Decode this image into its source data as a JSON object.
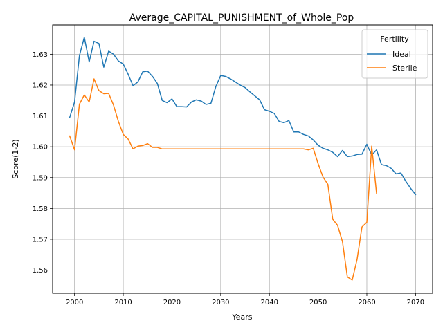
{
  "chart_data": {
    "type": "line",
    "title": "Average_CAPITAL_PUNISHMENT_of_Whole_Pop",
    "xlabel": "Years",
    "ylabel": "Score(1-2)",
    "xlim": [
      1995.5,
      2073.5
    ],
    "ylim": [
      1.5525,
      1.6395
    ],
    "xticks": [
      2000,
      2010,
      2020,
      2030,
      2040,
      2050,
      2060,
      2070
    ],
    "yticks": [
      1.56,
      1.57,
      1.58,
      1.59,
      1.6,
      1.61,
      1.62,
      1.63
    ],
    "grid": true,
    "legend": {
      "title": "Fertility",
      "placement": "top-right"
    },
    "series": [
      {
        "name": "Ideal",
        "color": "#1f77b4",
        "x": [
          1999,
          2000,
          2001,
          2002,
          2003,
          2004,
          2005,
          2006,
          2007,
          2008,
          2009,
          2010,
          2011,
          2012,
          2013,
          2014,
          2015,
          2016,
          2017,
          2018,
          2019,
          2020,
          2021,
          2022,
          2023,
          2024,
          2025,
          2026,
          2027,
          2028,
          2029,
          2030,
          2031,
          2032,
          2033,
          2034,
          2035,
          2036,
          2037,
          2038,
          2039,
          2040,
          2041,
          2042,
          2043,
          2044,
          2045,
          2046,
          2047,
          2048,
          2049,
          2050,
          2051,
          2052,
          2053,
          2054,
          2055,
          2056,
          2057,
          2058,
          2059,
          2060,
          2061,
          2062,
          2063,
          2064,
          2065,
          2066,
          2067,
          2068,
          2069,
          2070
        ],
        "values": [
          1.6095,
          1.6145,
          1.6295,
          1.6355,
          1.6275,
          1.6342,
          1.6335,
          1.6258,
          1.631,
          1.63,
          1.6278,
          1.6268,
          1.6235,
          1.6198,
          1.621,
          1.6243,
          1.6245,
          1.6228,
          1.6205,
          1.615,
          1.6143,
          1.6155,
          1.613,
          1.613,
          1.6129,
          1.6145,
          1.6152,
          1.6148,
          1.6137,
          1.6141,
          1.6195,
          1.6231,
          1.6228,
          1.622,
          1.621,
          1.62,
          1.6192,
          1.6178,
          1.6165,
          1.6152,
          1.612,
          1.6115,
          1.6108,
          1.6082,
          1.6078,
          1.6085,
          1.6048,
          1.6048,
          1.604,
          1.6035,
          1.6022,
          1.6005,
          1.5995,
          1.599,
          1.5982,
          1.5968,
          1.5988,
          1.5968,
          1.597,
          1.5975,
          1.5976,
          1.6008,
          1.5973,
          1.599,
          1.5942,
          1.5939,
          1.593,
          1.5912,
          1.5915,
          1.5888,
          1.5865,
          1.5845
        ]
      },
      {
        "name": "Sterile",
        "color": "#ff7f0e",
        "x": [
          1999,
          2000,
          2001,
          2002,
          2003,
          2004,
          2005,
          2006,
          2007,
          2008,
          2009,
          2010,
          2011,
          2012,
          2013,
          2014,
          2015,
          2016,
          2017,
          2018,
          2019,
          2020,
          2021,
          2022,
          2023,
          2024,
          2025,
          2026,
          2027,
          2028,
          2029,
          2030,
          2031,
          2032,
          2033,
          2034,
          2035,
          2036,
          2037,
          2038,
          2039,
          2040,
          2041,
          2042,
          2043,
          2044,
          2045,
          2046,
          2047,
          2048,
          2049,
          2050,
          2051,
          2052,
          2053,
          2054,
          2055,
          2056,
          2057,
          2058,
          2059,
          2060,
          2061,
          2062
        ],
        "values": [
          1.6035,
          1.599,
          1.6138,
          1.6168,
          1.6145,
          1.622,
          1.6182,
          1.6172,
          1.6173,
          1.6135,
          1.6082,
          1.604,
          1.6025,
          1.5993,
          1.6002,
          1.6004,
          1.601,
          1.5998,
          1.5998,
          1.5993,
          1.5993,
          1.5993,
          1.5993,
          1.5993,
          1.5993,
          1.5993,
          1.5993,
          1.5993,
          1.5993,
          1.5993,
          1.5993,
          1.5993,
          1.5993,
          1.5993,
          1.5993,
          1.5993,
          1.5993,
          1.5993,
          1.5993,
          1.5993,
          1.5993,
          1.5993,
          1.5993,
          1.5993,
          1.5993,
          1.5993,
          1.5993,
          1.5993,
          1.5993,
          1.599,
          1.5995,
          1.5945,
          1.5902,
          1.5878,
          1.5765,
          1.5745,
          1.5692,
          1.5578,
          1.5568,
          1.5635,
          1.574,
          1.5755,
          1.6002,
          1.5848
        ]
      }
    ]
  }
}
